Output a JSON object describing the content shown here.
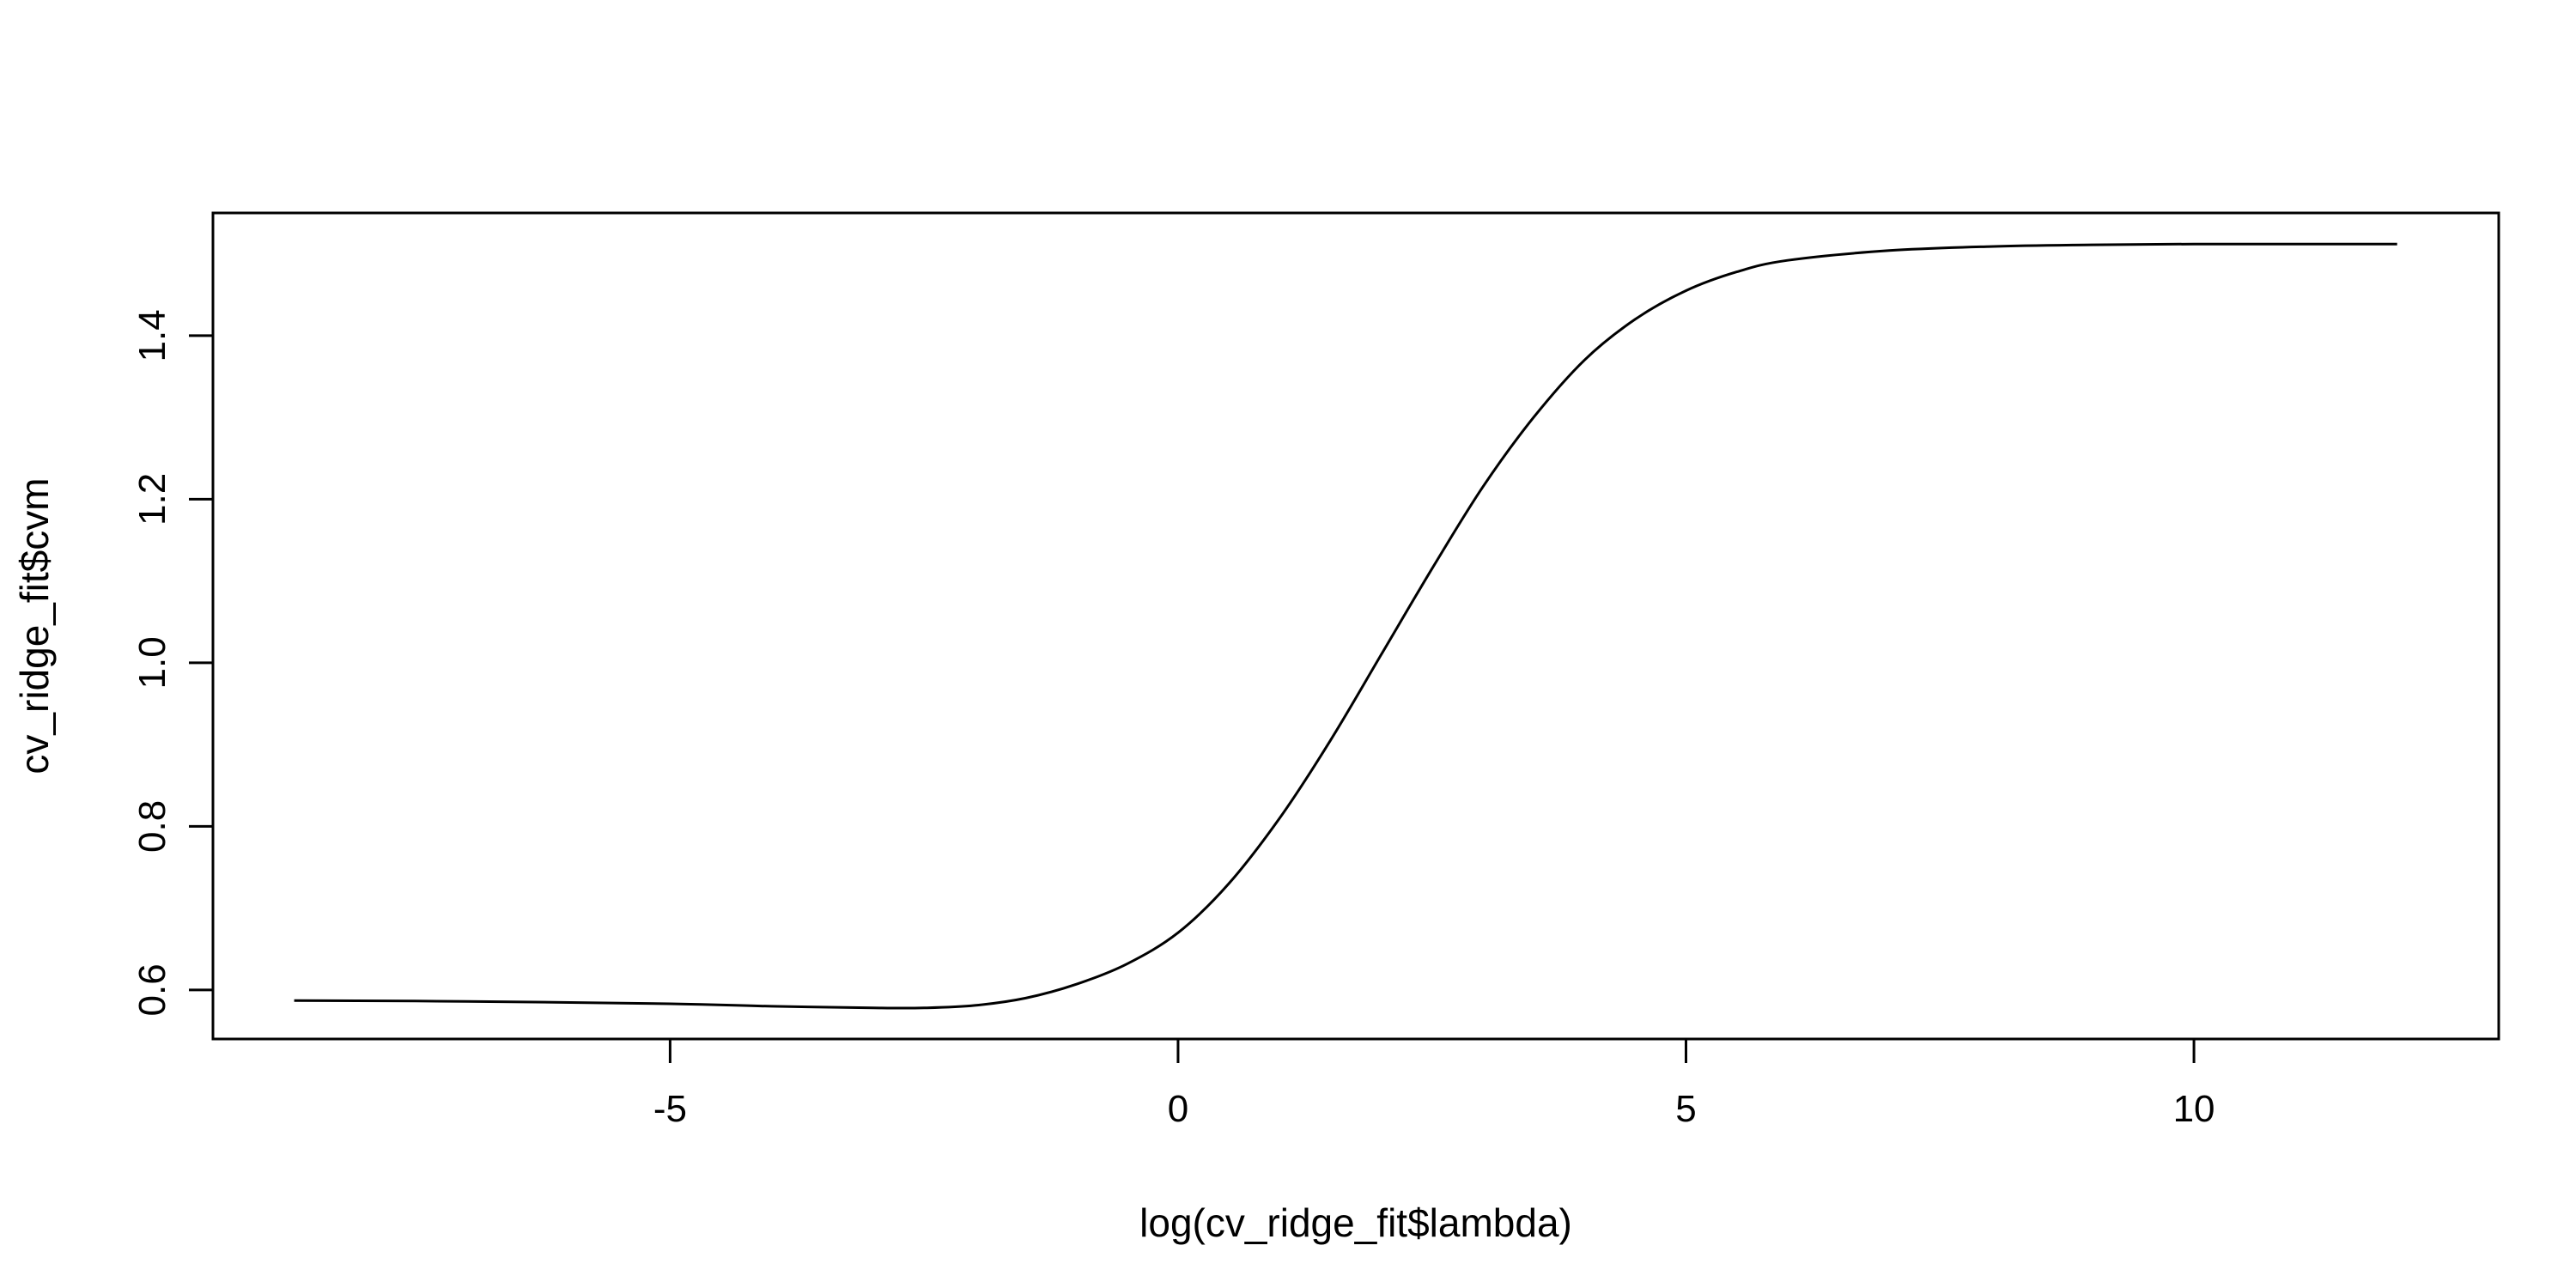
{
  "chart_data": {
    "type": "line",
    "title": "",
    "xlabel": "log(cv_ridge_fit$lambda)",
    "ylabel": "cv_ridge_fit$cvm",
    "xlim": [
      -9.5,
      13
    ],
    "ylim": [
      0.54,
      1.55
    ],
    "xticks": [
      -5,
      0,
      5,
      10
    ],
    "yticks": [
      0.6,
      0.8,
      1.0,
      1.2,
      1.4
    ],
    "xtick_labels": [
      "-5",
      "0",
      "5",
      "10"
    ],
    "ytick_labels": [
      "0.6",
      "0.8",
      "1.0",
      "1.2",
      "1.4"
    ],
    "grid": false,
    "series": [
      {
        "x": [
          -8.7,
          -7,
          -5,
          -4,
          -3,
          -2.5,
          -2,
          -1.5,
          -1,
          -0.5,
          0,
          0.5,
          1,
          1.5,
          2,
          2.5,
          3,
          3.5,
          4,
          4.5,
          5,
          5.5,
          6,
          7,
          8,
          9,
          10,
          11,
          12
        ],
        "values": [
          0.587,
          0.586,
          0.583,
          0.58,
          0.578,
          0.578,
          0.581,
          0.59,
          0.607,
          0.632,
          0.67,
          0.73,
          0.81,
          0.905,
          1.01,
          1.115,
          1.215,
          1.3,
          1.37,
          1.42,
          1.455,
          1.478,
          1.492,
          1.504,
          1.509,
          1.511,
          1.512,
          1.512,
          1.512
        ]
      }
    ]
  }
}
